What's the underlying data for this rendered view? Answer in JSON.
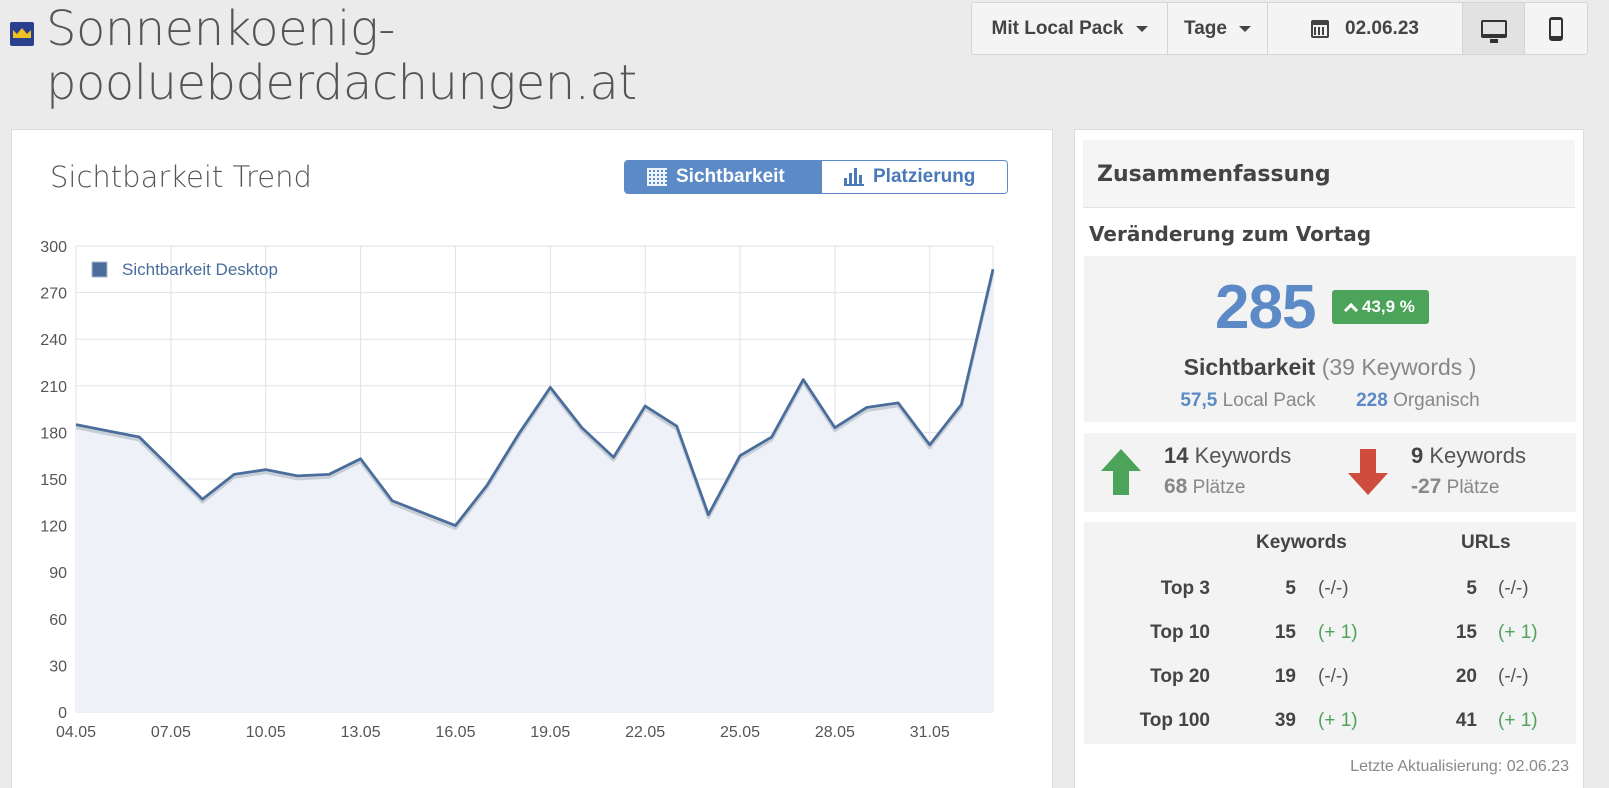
{
  "header": {
    "site_name_line1": "Sonnenkoenig-",
    "site_name_line2": "pooluebderdachungen.at"
  },
  "toolbar": {
    "local_pack_label": "Mit Local Pack",
    "period_label": "Tage",
    "date_label": "02.06.23"
  },
  "chart_panel": {
    "title": "Sichtbarkeit Trend",
    "tab_visibility": "Sichtbarkeit",
    "tab_ranking": "Platzierung"
  },
  "chart_data": {
    "type": "area",
    "series": [
      {
        "name": "Sichtbarkeit Desktop",
        "values": [
          185,
          181,
          177,
          157,
          137,
          153,
          156,
          152,
          153,
          163,
          136,
          128,
          120,
          146,
          179,
          209,
          183,
          164,
          197,
          184,
          127,
          165,
          177,
          214,
          183,
          196,
          199,
          172,
          198,
          285
        ]
      }
    ],
    "x_tick_labels": [
      "04.05",
      "07.05",
      "10.05",
      "13.05",
      "16.05",
      "19.05",
      "22.05",
      "25.05",
      "28.05",
      "31.05"
    ],
    "y_ticks": [
      0,
      30,
      60,
      90,
      120,
      150,
      180,
      210,
      240,
      270,
      300
    ],
    "ylim": [
      0,
      300
    ],
    "grid": true,
    "legend_position": "top-left",
    "colors": {
      "line": "#4a6d9c",
      "fill": "#eef2f8"
    }
  },
  "summary": {
    "title": "Zusammenfassung",
    "change_title": "Veränderung zum Vortag",
    "visibility_value": "285",
    "visibility_change": "43,9 %",
    "visibility_label": "Sichtbarkeit",
    "keywords_note": "(39 Keywords )",
    "local_pack_value": "57,5",
    "local_pack_label": "Local Pack",
    "organic_value": "228",
    "organic_label": "Organisch",
    "up": {
      "keywords_count": "14",
      "keywords_label": "Keywords",
      "places": "68",
      "places_label": "Plätze"
    },
    "down": {
      "keywords_count": "9",
      "keywords_label": "Keywords",
      "places": "-27",
      "places_label": "Plätze"
    },
    "table": {
      "col_keywords": "Keywords",
      "col_urls": "URLs",
      "rows": [
        {
          "label": "Top 3",
          "kw": "5",
          "kw_delta": "(-/-)",
          "url": "5",
          "url_delta": "(-/-)"
        },
        {
          "label": "Top 10",
          "kw": "15",
          "kw_delta": "(+ 1)",
          "url": "15",
          "url_delta": "(+ 1)"
        },
        {
          "label": "Top 20",
          "kw": "19",
          "kw_delta": "(-/-)",
          "url": "20",
          "url_delta": "(-/-)"
        },
        {
          "label": "Top 100",
          "kw": "39",
          "kw_delta": "(+ 1)",
          "url": "41",
          "url_delta": "(+ 1)"
        }
      ]
    },
    "last_updated": "Letzte Aktualisierung: 02.06.23"
  }
}
